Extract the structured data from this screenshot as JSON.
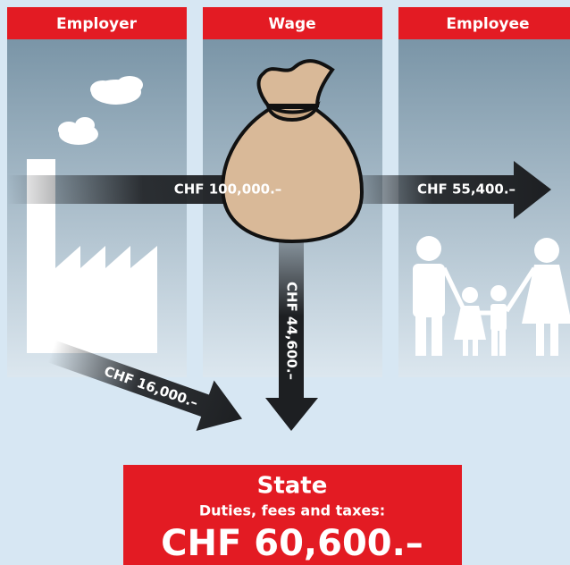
{
  "columns": [
    {
      "title": "Employer"
    },
    {
      "title": "Wage"
    },
    {
      "title": "Employee"
    }
  ],
  "flows": [
    {
      "label": "CHF 100,000.–"
    },
    {
      "label": "CHF 55,400.–"
    },
    {
      "label": "CHF 44,600.–"
    },
    {
      "label": "CHF 16,000.–"
    }
  ],
  "state": {
    "title": "State",
    "subtitle": "Duties, fees and taxes:",
    "total": "CHF 60,600.–"
  }
}
